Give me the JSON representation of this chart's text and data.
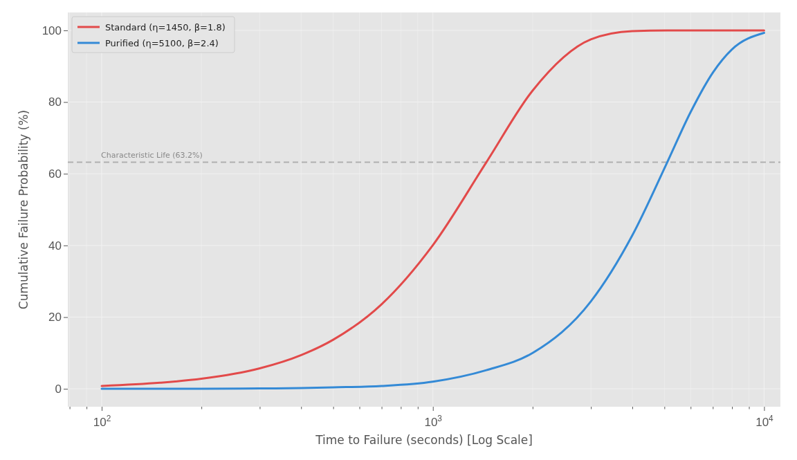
{
  "chart_data": {
    "type": "line",
    "xlabel": "Time to Failure (seconds) [Log Scale]",
    "ylabel": "Cumulative Failure Probability (%)",
    "log": "x",
    "xlim": [
      79,
      11200
    ],
    "ylim": [
      -5,
      105
    ],
    "xticks": [
      {
        "value": 80,
        "label": null
      },
      {
        "value": 90,
        "label": null
      },
      {
        "value": 100,
        "label": "10$^{2}$"
      },
      {
        "value": 200,
        "label": null
      },
      {
        "value": 300,
        "label": null
      },
      {
        "value": 400,
        "label": null
      },
      {
        "value": 500,
        "label": null
      },
      {
        "value": 600,
        "label": null
      },
      {
        "value": 700,
        "label": null
      },
      {
        "value": 800,
        "label": null
      },
      {
        "value": 900,
        "label": null
      },
      {
        "value": 1000,
        "label": "10$^{3}$"
      },
      {
        "value": 2000,
        "label": null
      },
      {
        "value": 3000,
        "label": null
      },
      {
        "value": 4000,
        "label": null
      },
      {
        "value": 5000,
        "label": null
      },
      {
        "value": 6000,
        "label": null
      },
      {
        "value": 7000,
        "label": null
      },
      {
        "value": 8000,
        "label": null
      },
      {
        "value": 9000,
        "label": null
      },
      {
        "value": 10000,
        "label": "10$^{4}$"
      }
    ],
    "yticks": [
      0,
      20,
      40,
      60,
      80,
      100
    ],
    "grid": true,
    "legend": "top left",
    "line_style": "solid",
    "marker": "none",
    "x": [
      100,
      150,
      200,
      300,
      400,
      500,
      700,
      1000,
      1450,
      2000,
      3000,
      4000,
      5100,
      6000,
      7000,
      8000,
      10000
    ],
    "series": [
      {
        "name": "Standard (η=1450, β=1.8)",
        "color": "#e24a4a",
        "values": [
          0.8,
          1.7,
          2.8,
          5.7,
          9.4,
          13.7,
          23.6,
          40.1,
          63.2,
          83.2,
          97.5,
          99.8,
          100,
          100,
          100,
          100,
          100
        ]
      },
      {
        "name": "Purified (η=5100, β=2.4)",
        "color": "#348ad6",
        "values": [
          0,
          0,
          0,
          0.1,
          0.2,
          0.4,
          0.8,
          2.0,
          5.2,
          10.0,
          24.4,
          42.8,
          63.2,
          77.2,
          88.2,
          94.7,
          99.3
        ]
      }
    ],
    "ref_lines": [
      {
        "axis": "y",
        "value": 63.2,
        "label": "Characteristic Life (63.2%)",
        "color": "#b0b0b0",
        "line_style": "dashed"
      }
    ]
  }
}
